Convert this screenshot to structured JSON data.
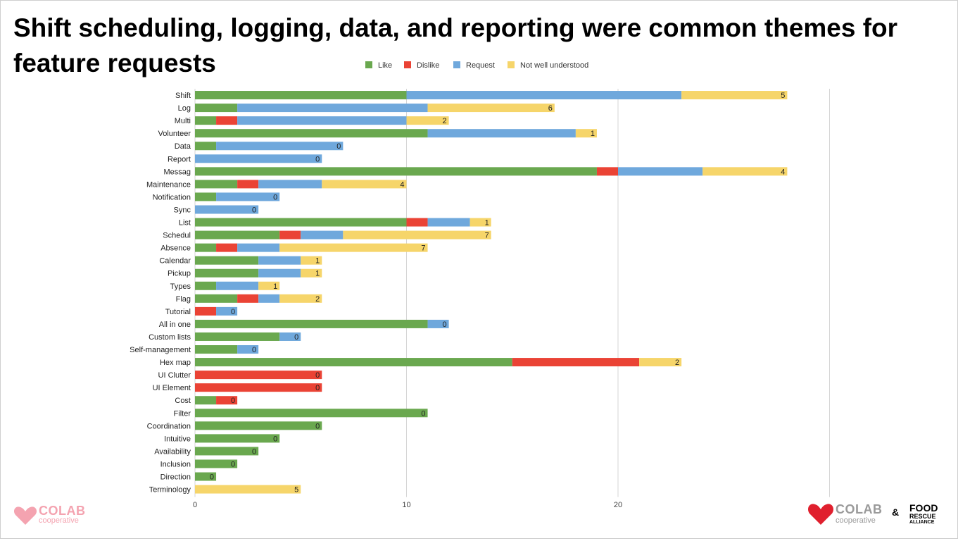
{
  "slide": {
    "title": "Shift scheduling, logging, data, and reporting were common themes for feature requests"
  },
  "logos": {
    "left": {
      "word": "COLAB",
      "sub": "cooperative",
      "color": "#f4a3b0"
    },
    "right": {
      "word": "COLAB",
      "sub": "cooperative",
      "amp": "&",
      "partner": [
        "FOOD",
        "RESCUE",
        "ALLIANCE"
      ],
      "heart_color": "#e0202e"
    }
  },
  "chart_data": {
    "type": "bar",
    "orientation": "horizontal",
    "stacked": true,
    "legend_position": "top",
    "grid": true,
    "xlim": [
      0,
      30
    ],
    "x_ticks": [
      0,
      10,
      20
    ],
    "categories": [
      "Shift",
      "Log",
      "Multi",
      "Volunteer",
      "Data",
      "Report",
      "Messag",
      "Maintenance",
      "Notification",
      "Sync",
      "List",
      "Schedul",
      "Absence",
      "Calendar",
      "Pickup",
      "Types",
      "Flag",
      "Tutorial",
      "All in one",
      "Custom lists",
      "Self-management",
      "Hex map",
      "UI Clutter",
      "UI Element",
      "Cost",
      "Filter",
      "Coordination",
      "Intuitive",
      "Availability",
      "Inclusion",
      "Direction",
      "Terminology"
    ],
    "series": [
      {
        "name": "Like",
        "color": "#6aa84f",
        "values": [
          10,
          2,
          1,
          11,
          1,
          0,
          19,
          2,
          1,
          0,
          10,
          4,
          1,
          3,
          3,
          1,
          2,
          0,
          11,
          4,
          2,
          15,
          0,
          0,
          1,
          11,
          6,
          4,
          3,
          2,
          1,
          0
        ]
      },
      {
        "name": "Dislike",
        "color": "#ea4335",
        "values": [
          0,
          0,
          1,
          0,
          0,
          0,
          1,
          1,
          0,
          0,
          1,
          1,
          1,
          0,
          0,
          0,
          1,
          1,
          0,
          0,
          0,
          6,
          6,
          6,
          1,
          0,
          0,
          0,
          0,
          0,
          0,
          0
        ]
      },
      {
        "name": "Request",
        "color": "#6fa8dc",
        "values": [
          13,
          9,
          8,
          7,
          6,
          6,
          4,
          3,
          3,
          3,
          2,
          2,
          2,
          2,
          2,
          2,
          1,
          1,
          1,
          1,
          1,
          0,
          0,
          0,
          0,
          0,
          0,
          0,
          0,
          0,
          0,
          0
        ]
      },
      {
        "name": "Not well understood",
        "color": "#f6d56a",
        "values": [
          5,
          6,
          2,
          1,
          0,
          0,
          4,
          4,
          0,
          0,
          1,
          7,
          7,
          1,
          1,
          1,
          2,
          0,
          0,
          0,
          0,
          2,
          0,
          0,
          0,
          0,
          0,
          0,
          0,
          0,
          0,
          5
        ]
      }
    ]
  }
}
